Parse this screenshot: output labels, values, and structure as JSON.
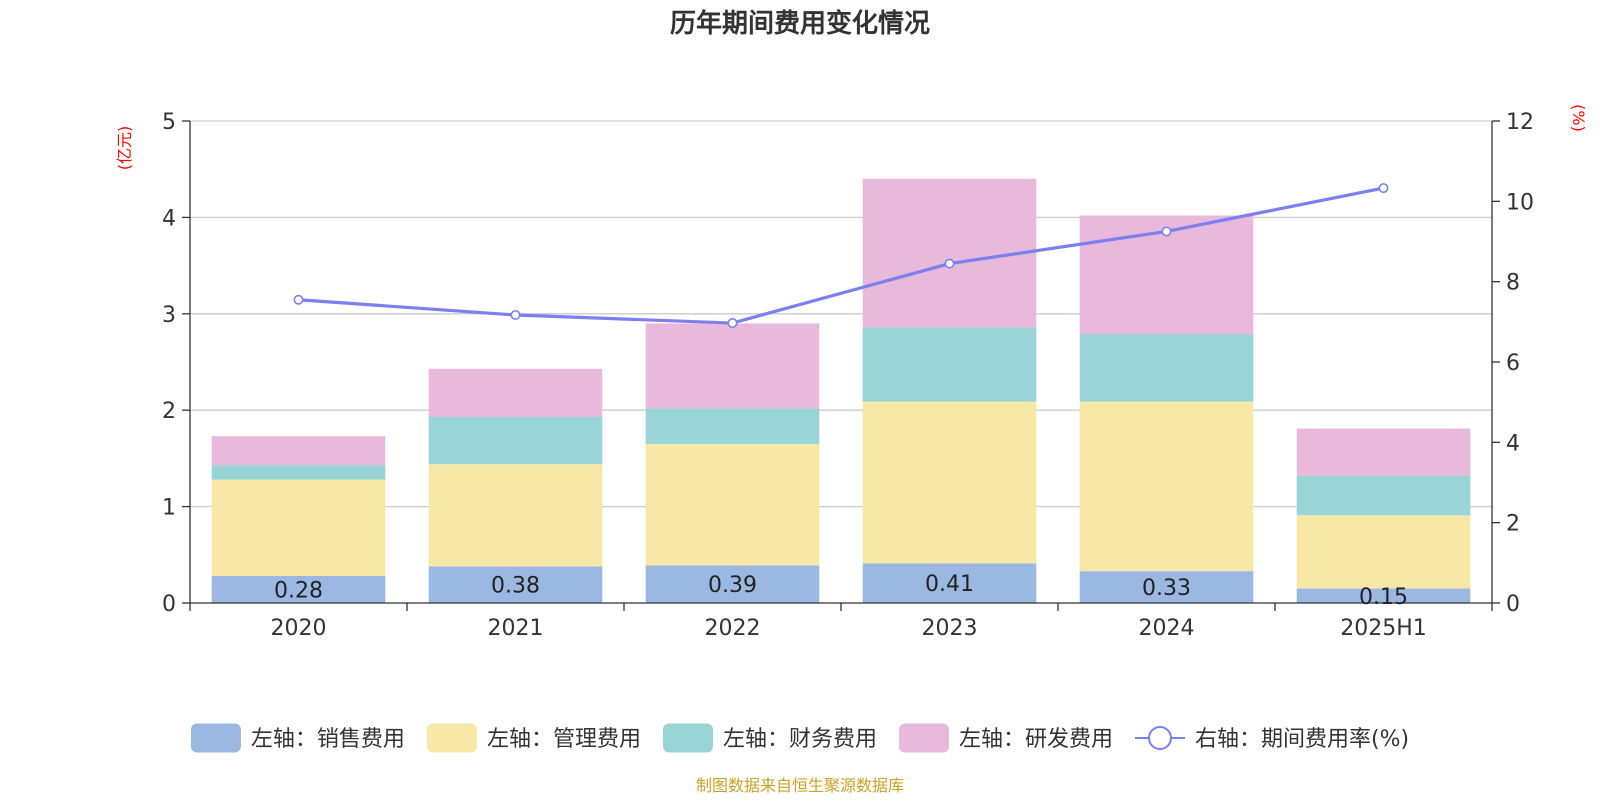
{
  "chart_data": {
    "type": "bar",
    "title": "历年期间费用变化情况",
    "categories": [
      "2020",
      "2021",
      "2022",
      "2023",
      "2024",
      "2025H1"
    ],
    "left_axis": {
      "unit": "(亿元)",
      "ylim": [
        0,
        5
      ],
      "ticks": [
        0,
        1,
        2,
        3,
        4,
        5
      ]
    },
    "right_axis": {
      "unit": "(%)",
      "ylim": [
        0,
        12
      ],
      "ticks": [
        0,
        2,
        4,
        6,
        8,
        10,
        12
      ]
    },
    "series": [
      {
        "name": "左轴：销售费用",
        "type": "bar",
        "stack": "cost",
        "axis": "left",
        "color": "#9bb8e3",
        "values": [
          0.28,
          0.38,
          0.39,
          0.41,
          0.33,
          0.15
        ],
        "labels": [
          "0.28",
          "0.38",
          "0.39",
          "0.41",
          "0.33",
          "0.15"
        ]
      },
      {
        "name": "左轴：管理费用",
        "type": "bar",
        "stack": "cost",
        "axis": "left",
        "color": "#f8e8a8",
        "values": [
          1.0,
          1.06,
          1.26,
          1.68,
          1.76,
          0.76
        ]
      },
      {
        "name": "左轴：财务费用",
        "type": "bar",
        "stack": "cost",
        "axis": "left",
        "color": "#99d5d6",
        "values": [
          0.15,
          0.49,
          0.37,
          0.77,
          0.7,
          0.41
        ]
      },
      {
        "name": "左轴：研发费用",
        "type": "bar",
        "stack": "cost",
        "axis": "left",
        "color": "#e8b9da",
        "values": [
          0.3,
          0.5,
          0.88,
          1.54,
          1.23,
          0.49
        ]
      },
      {
        "name": "右轴：期间费用率(%)",
        "type": "line",
        "axis": "right",
        "color": "#7b7ff0",
        "values": [
          7.55,
          7.17,
          6.97,
          8.45,
          9.25,
          10.33
        ]
      }
    ],
    "grid": true,
    "legend_position": "bottom"
  },
  "source_note": "制图数据来自恒生聚源数据库"
}
